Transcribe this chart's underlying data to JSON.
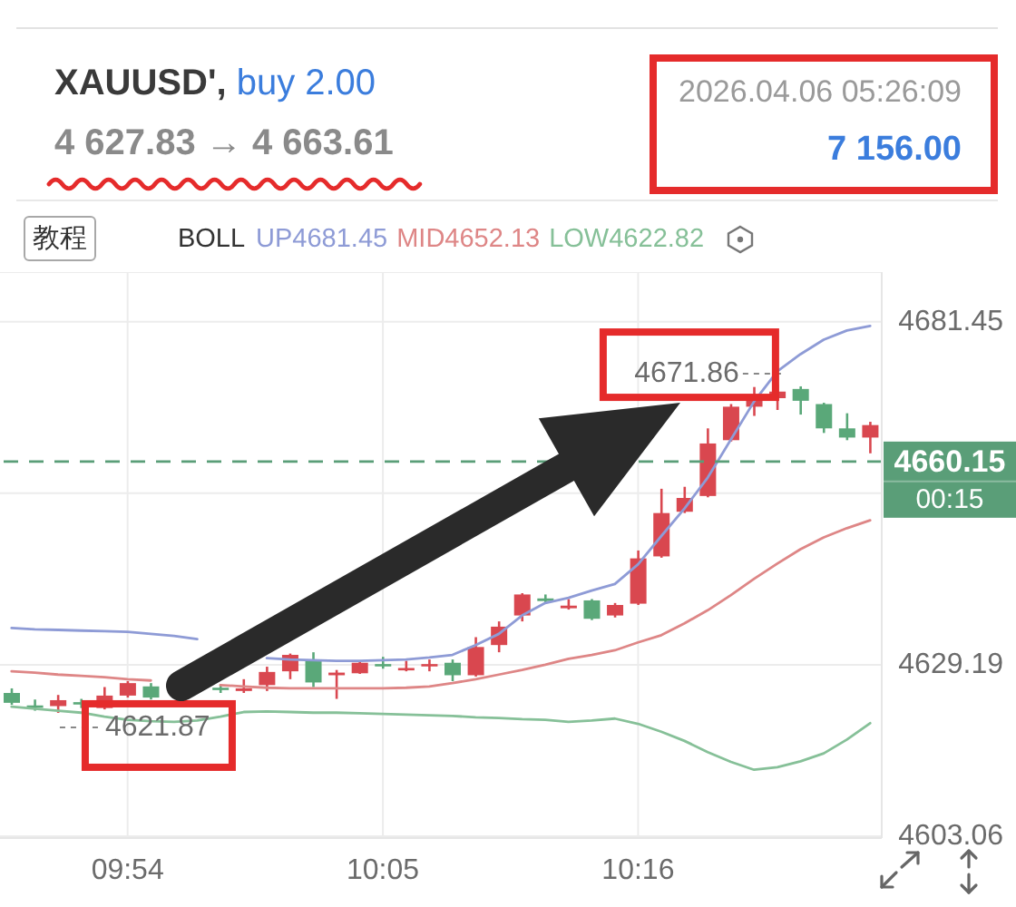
{
  "chart_data": {
    "type": "candlestick",
    "title": "XAUUSD', buy 2.00",
    "subtitle": "4 627.83 → 4 663.61",
    "legend_title": "BOLL",
    "annotations": [
      "2026.04.06 05:26:09",
      "7 156.00",
      "教程",
      "4671.86",
      "4621.87",
      "00:15"
    ],
    "categories": [
      null,
      null,
      null,
      null,
      null,
      "09:54",
      null,
      null,
      null,
      null,
      null,
      null,
      null,
      null,
      null,
      null,
      "10:05",
      null,
      null,
      null,
      null,
      null,
      null,
      null,
      null,
      null,
      null,
      "10:16",
      null,
      null,
      null,
      null,
      null,
      null,
      null,
      null,
      null,
      null
    ],
    "ohlc": [
      [
        4624.9,
        4625.6,
        4623.1,
        4623.4
      ],
      [
        4623.0,
        4623.9,
        4622.2,
        4622.9
      ],
      [
        4622.9,
        4624.6,
        4621.87,
        4623.8
      ],
      [
        4623.5,
        4624.0,
        4622.6,
        4623.3
      ],
      [
        4622.6,
        4625.8,
        4622.4,
        4624.5
      ],
      [
        4624.5,
        4626.7,
        4624.2,
        4626.4
      ],
      [
        4625.9,
        4626.4,
        4623.9,
        4624.2
      ],
      null,
      null,
      [
        4625.7,
        4626.2,
        4624.9,
        4625.5
      ],
      [
        4625.2,
        4627.0,
        4624.9,
        4625.6
      ],
      [
        4626.1,
        4628.9,
        4625.2,
        4628.1
      ],
      [
        4628.2,
        4630.9,
        4627.0,
        4630.7
      ],
      [
        4629.8,
        4631.1,
        4625.8,
        4626.5
      ],
      [
        4627.6,
        4628.4,
        4624.0,
        4628.0
      ],
      [
        4627.9,
        4629.8,
        4627.8,
        4629.5
      ],
      [
        4629.3,
        4630.4,
        4628.6,
        4629.1
      ],
      [
        4628.5,
        4629.8,
        4628.2,
        4628.7
      ],
      [
        4629.0,
        4630.0,
        4628.2,
        4629.3
      ],
      [
        4629.5,
        4630.0,
        4626.7,
        4627.6
      ],
      [
        4627.6,
        4633.4,
        4627.4,
        4631.9
      ],
      [
        4632.2,
        4635.8,
        4631.1,
        4635.0
      ],
      [
        4636.7,
        4640.1,
        4635.8,
        4639.9
      ],
      [
        4639.3,
        4639.9,
        4638.6,
        4638.9
      ],
      [
        4637.8,
        4639.2,
        4637.6,
        4638.2
      ],
      [
        4639.0,
        4639.2,
        4636.0,
        4636.2
      ],
      [
        4636.7,
        4638.6,
        4636.4,
        4638.3
      ],
      [
        4638.5,
        4646.6,
        4638.3,
        4645.4
      ],
      [
        4645.7,
        4656.0,
        4645.5,
        4652.3
      ],
      [
        4652.5,
        4656.3,
        4652.3,
        4654.6
      ],
      [
        4654.9,
        4665.2,
        4654.7,
        4662.9
      ],
      [
        4663.4,
        4668.9,
        4663.2,
        4668.5
      ],
      [
        4668.5,
        4671.5,
        4667.1,
        4670.3
      ],
      [
        4669.8,
        4671.86,
        4668.0,
        4670.8
      ],
      [
        4671.2,
        4671.6,
        4667.3,
        4669.4
      ],
      [
        4668.9,
        4669.1,
        4664.5,
        4665.2
      ],
      [
        4665.2,
        4667.5,
        4663.4,
        4663.8
      ],
      [
        4663.8,
        4666.2,
        4661.4,
        4665.7
      ]
    ],
    "colors": [
      "#5aa879",
      "#5aa879",
      "#d9474f",
      "#5aa879",
      "#d9474f",
      "#d9474f",
      "#5aa879",
      null,
      null,
      "#5aa879",
      "#d9474f",
      "#d9474f",
      "#d9474f",
      "#5aa879",
      "#d9474f",
      "#d9474f",
      "#5aa879",
      "#d9474f",
      "#d9474f",
      "#5aa879",
      "#d9474f",
      "#d9474f",
      "#d9474f",
      "#5aa879",
      "#d9474f",
      "#5aa879",
      "#d9474f",
      "#d9474f",
      "#d9474f",
      "#d9474f",
      "#d9474f",
      "#d9474f",
      "#d9474f",
      "#d9474f",
      "#5aa879",
      "#5aa879",
      "#5aa879",
      "#d9474f"
    ],
    "series": [
      {
        "type": "line",
        "name": "UP4681.45",
        "color": "#8e9bd6",
        "values": [
          4634.8,
          4634.6,
          4634.5,
          4634.4,
          4634.3,
          4634.2,
          4633.9,
          4633.6,
          4633.1,
          null,
          null,
          4630.2,
          4630.0,
          4629.9,
          4629.8,
          4629.8,
          4629.9,
          4630.0,
          4630.3,
          4630.7,
          4632.2,
          4633.9,
          4636.7,
          4638.6,
          4639.4,
          4640.5,
          4641.5,
          4644.5,
          4648.8,
          4653.0,
          4657.7,
          4663.5,
          4669.3,
          4673.9,
          4676.5,
          4678.7,
          4680.1,
          4680.8
        ]
      },
      {
        "type": "line",
        "name": "MID4652.13",
        "color": "#de8686",
        "values": [
          4628.2,
          4628.0,
          4627.7,
          4627.5,
          4627.3,
          4627.0,
          4626.8,
          null,
          null,
          4626.1,
          4625.9,
          4625.7,
          4625.6,
          4625.6,
          4625.6,
          4625.6,
          4625.6,
          4625.7,
          4625.9,
          4626.4,
          4627.0,
          4627.7,
          4628.4,
          4629.2,
          4630.1,
          4630.7,
          4631.4,
          4632.6,
          4633.7,
          4635.5,
          4637.5,
          4639.8,
          4642.3,
          4644.6,
          4646.8,
          4648.6,
          4650.0,
          4651.2
        ]
      },
      {
        "type": "line",
        "name": "LOW4622.82",
        "color": "#86c098",
        "values": [
          4622.8,
          4622.5,
          4622.2,
          4621.9,
          4621.3,
          4620.8,
          4620.6,
          4620.5,
          4620.7,
          4621.3,
          4622.0,
          4622.1,
          4622.0,
          4621.9,
          4621.9,
          4621.8,
          4621.7,
          4621.6,
          4621.5,
          4621.4,
          4621.2,
          4621.1,
          4620.9,
          4620.8,
          4620.5,
          4620.7,
          4621.0,
          4620.2,
          4619.0,
          4617.6,
          4615.9,
          4614.4,
          4613.2,
          4613.6,
          4614.5,
          4615.7,
          4617.8,
          4620.3
        ]
      }
    ],
    "ylim": [
      4602.8,
      4689
    ],
    "yticks": [
      4603.06,
      4629.19,
      {
        "value": 4655.32,
        "label": null
      },
      4681.45
    ],
    "ref_lines": [
      {
        "axis": "y",
        "value": 4660.15,
        "label": "4660.15",
        "color": "#5a9e78",
        "line_style": "dashed"
      }
    ],
    "grid": true,
    "legend": "top"
  }
}
